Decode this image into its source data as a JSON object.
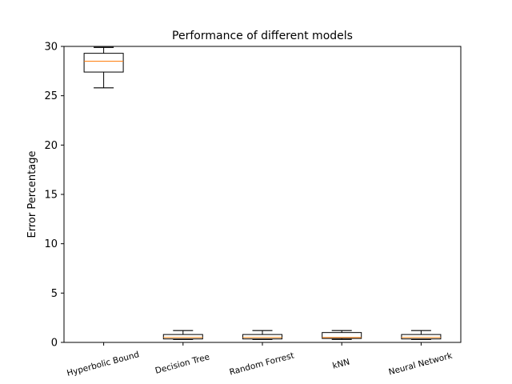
{
  "chart_data": {
    "type": "box",
    "title": "Performance of different models",
    "xlabel": "",
    "ylabel": "Error Percentage",
    "ylim": [
      0,
      30
    ],
    "yticks": [
      "0",
      "5",
      "10",
      "15",
      "20",
      "25",
      "30"
    ],
    "categories": [
      "Hyperbolic Bound",
      "Decision Tree",
      "Random Forrest",
      "kNN",
      "Neural Network"
    ],
    "boxes": [
      {
        "name": "Hyperbolic Bound",
        "whisker_low": 25.8,
        "q1": 27.4,
        "median": 28.5,
        "q3": 29.3,
        "whisker_high": 29.9
      },
      {
        "name": "Decision Tree",
        "whisker_low": 0.3,
        "q1": 0.35,
        "median": 0.5,
        "q3": 0.8,
        "whisker_high": 1.2
      },
      {
        "name": "Random Forrest",
        "whisker_low": 0.3,
        "q1": 0.35,
        "median": 0.5,
        "q3": 0.8,
        "whisker_high": 1.2
      },
      {
        "name": "kNN",
        "whisker_low": 0.3,
        "q1": 0.4,
        "median": 0.5,
        "q3": 1.0,
        "whisker_high": 1.2
      },
      {
        "name": "Neural Network",
        "whisker_low": 0.3,
        "q1": 0.35,
        "median": 0.5,
        "q3": 0.8,
        "whisker_high": 1.2
      }
    ],
    "colors": {
      "box": "#000000",
      "median": "#ff7f0e",
      "axis": "#000000"
    },
    "grid": false,
    "legend": "none"
  }
}
